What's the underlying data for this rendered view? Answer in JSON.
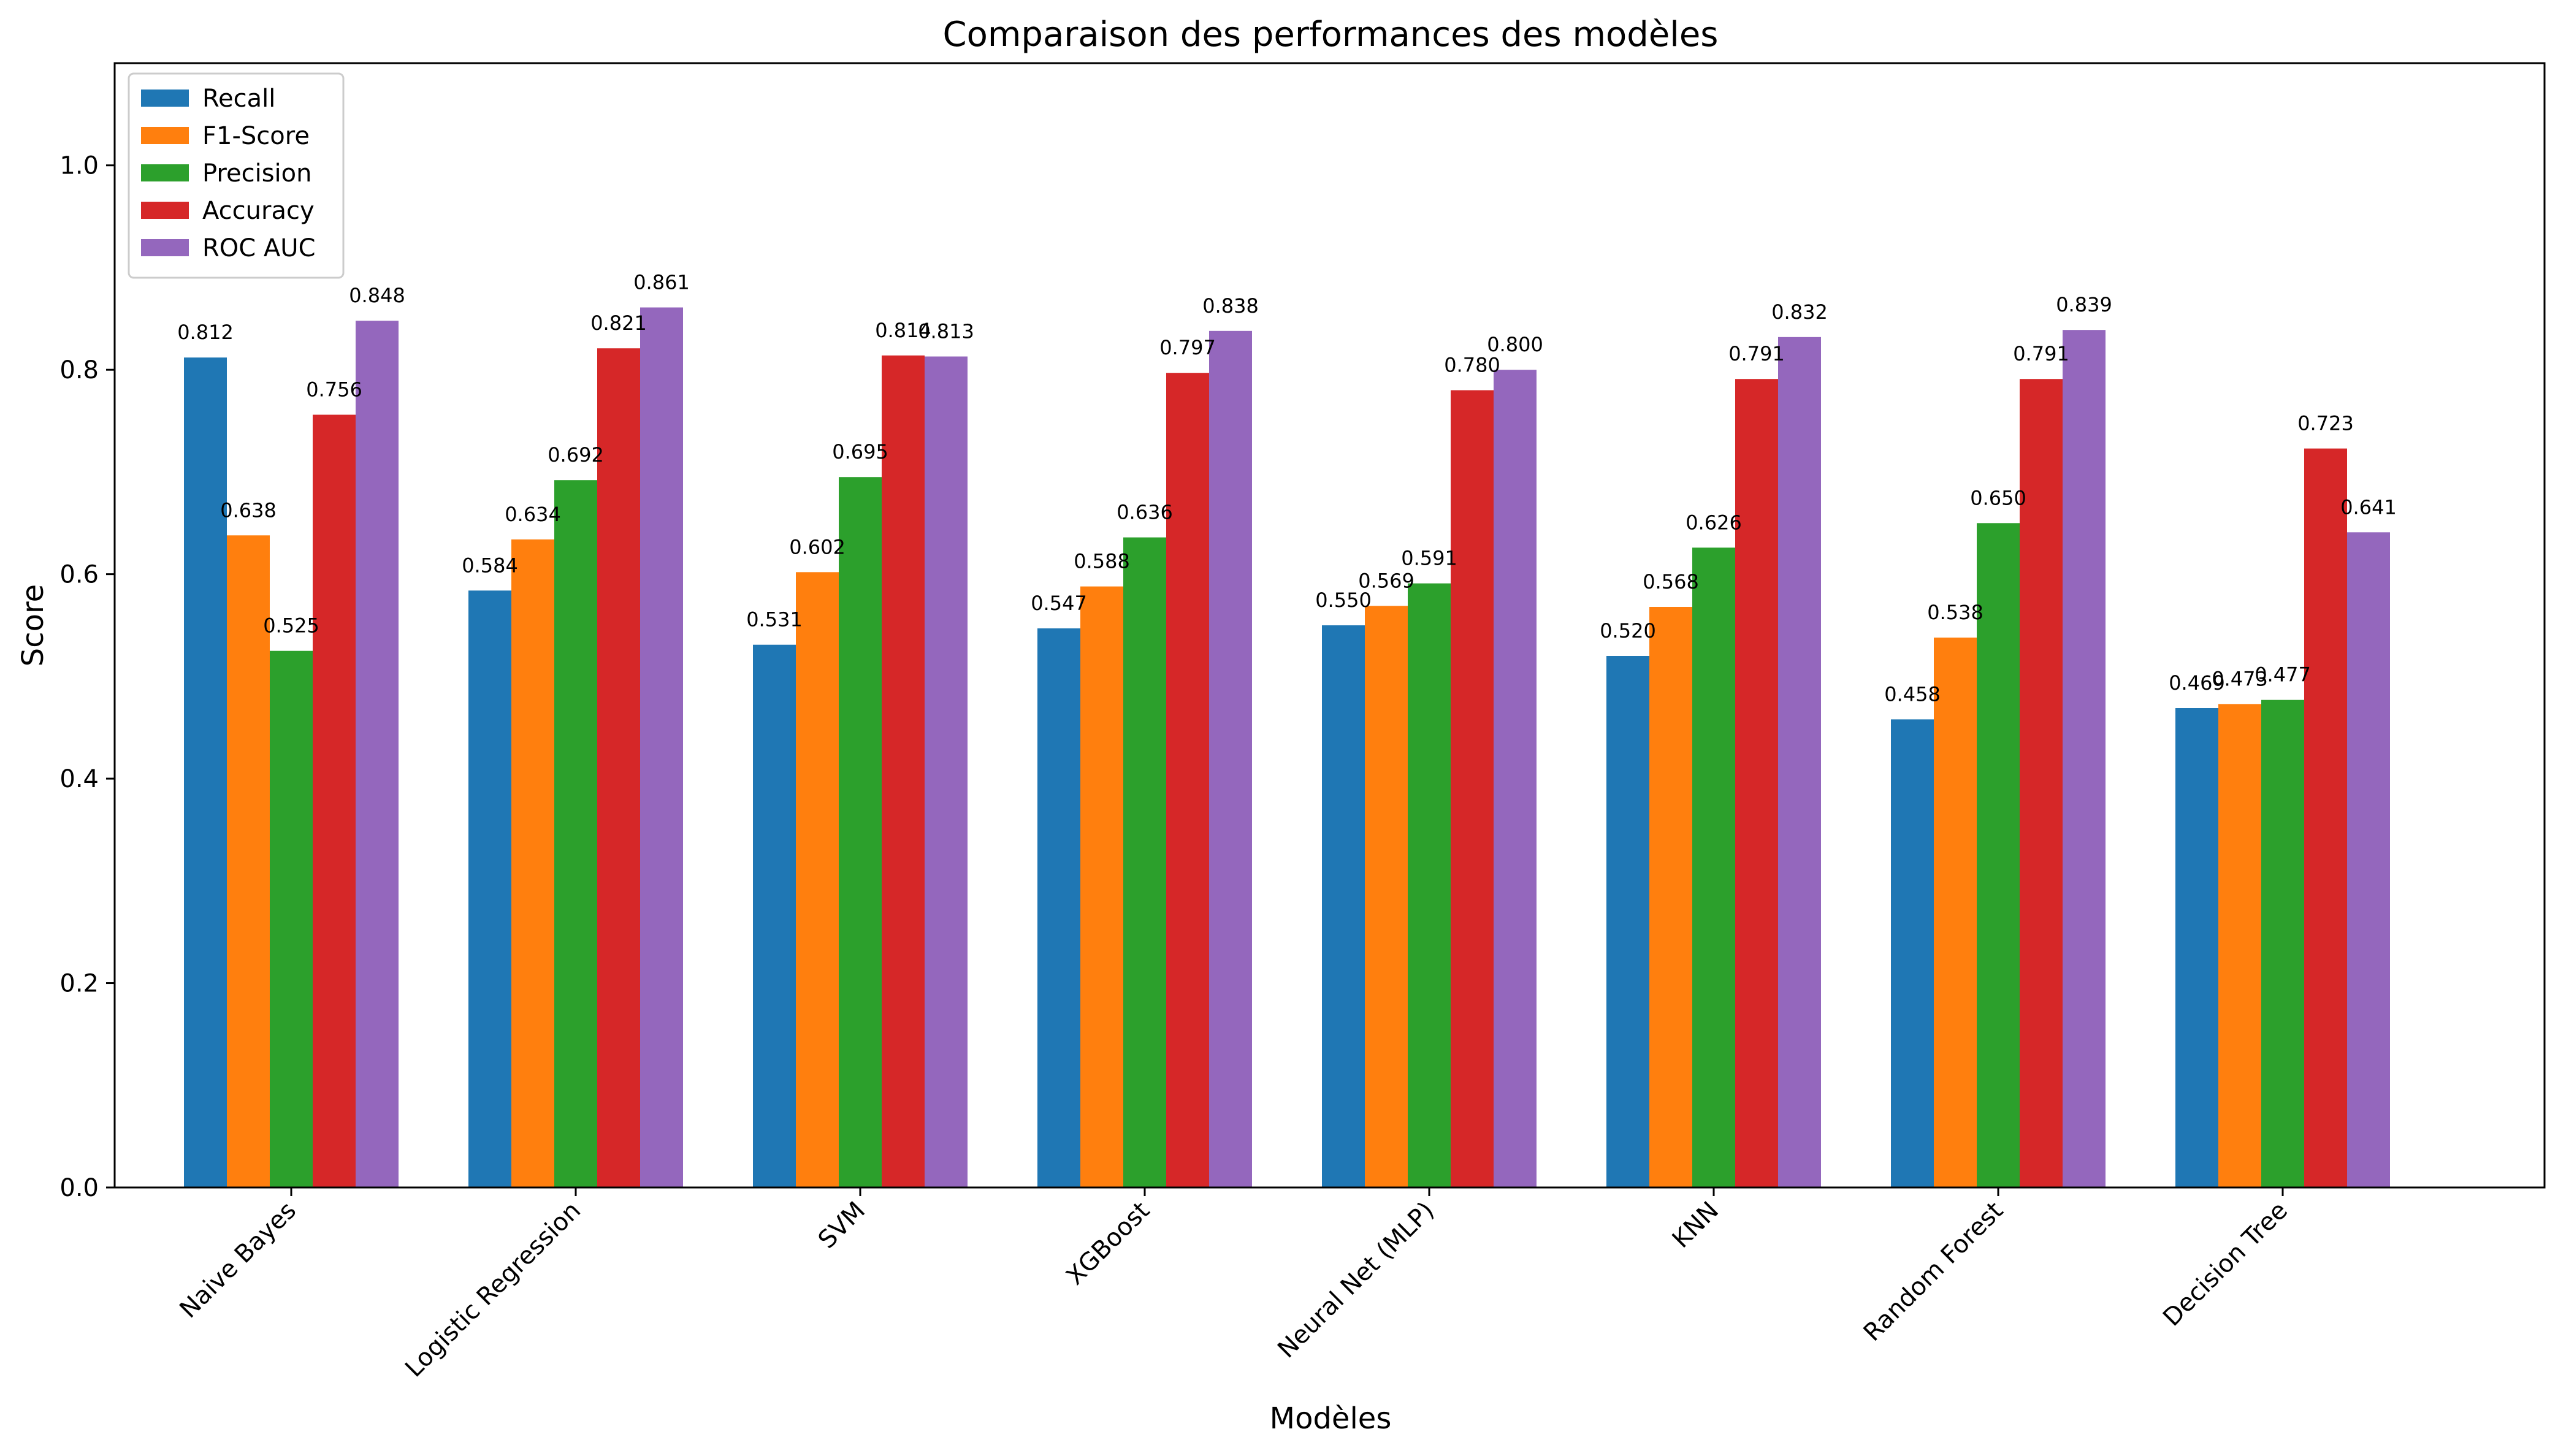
{
  "chart_data": {
    "type": "bar",
    "title": "Comparaison des performances des modèles",
    "xlabel": "Modèles",
    "ylabel": "Score",
    "ylim": [
      0,
      1.1
    ],
    "yticks": [
      0.0,
      0.2,
      0.4,
      0.6,
      0.8,
      1.0
    ],
    "ytick_labels": [
      "0.0",
      "0.2",
      "0.4",
      "0.6",
      "0.8",
      "1.0"
    ],
    "grid": false,
    "legend_position": "top-left",
    "categories": [
      "Naive Bayes",
      "Logistic Regression",
      "SVM",
      "XGBoost",
      "Neural Net (MLP)",
      "KNN",
      "Random Forest",
      "Decision Tree"
    ],
    "series": [
      {
        "name": "Recall",
        "color": "#1f77b4",
        "values": [
          0.812,
          0.584,
          0.531,
          0.547,
          0.55,
          0.52,
          0.458,
          0.469
        ],
        "labels": [
          "0.812",
          "0.584",
          "0.531",
          "0.547",
          "0.550",
          "0.520",
          "0.458",
          "0.469"
        ]
      },
      {
        "name": "F1-Score",
        "color": "#ff7f0e",
        "values": [
          0.638,
          0.634,
          0.602,
          0.588,
          0.569,
          0.568,
          0.538,
          0.473
        ],
        "labels": [
          "0.638",
          "0.634",
          "0.602",
          "0.588",
          "0.569",
          "0.568",
          "0.538",
          "0.473"
        ]
      },
      {
        "name": "Precision",
        "color": "#2ca02c",
        "values": [
          0.525,
          0.692,
          0.695,
          0.636,
          0.591,
          0.626,
          0.65,
          0.477
        ],
        "labels": [
          "0.525",
          "0.692",
          "0.695",
          "0.636",
          "0.591",
          "0.626",
          "0.650",
          "0.477"
        ]
      },
      {
        "name": "Accuracy",
        "color": "#d62728",
        "values": [
          0.756,
          0.821,
          0.814,
          0.797,
          0.78,
          0.791,
          0.791,
          0.723
        ],
        "labels": [
          "0.756",
          "0.821",
          "0.814",
          "0.797",
          "0.780",
          "0.791",
          "0.791",
          "0.723"
        ]
      },
      {
        "name": "ROC AUC",
        "color": "#9467bd",
        "values": [
          0.848,
          0.861,
          0.813,
          0.838,
          0.8,
          0.832,
          0.839,
          0.641
        ],
        "labels": [
          "0.848",
          "0.861",
          "0.813",
          "0.838",
          "0.800",
          "0.832",
          "0.839",
          "0.641"
        ]
      }
    ]
  }
}
